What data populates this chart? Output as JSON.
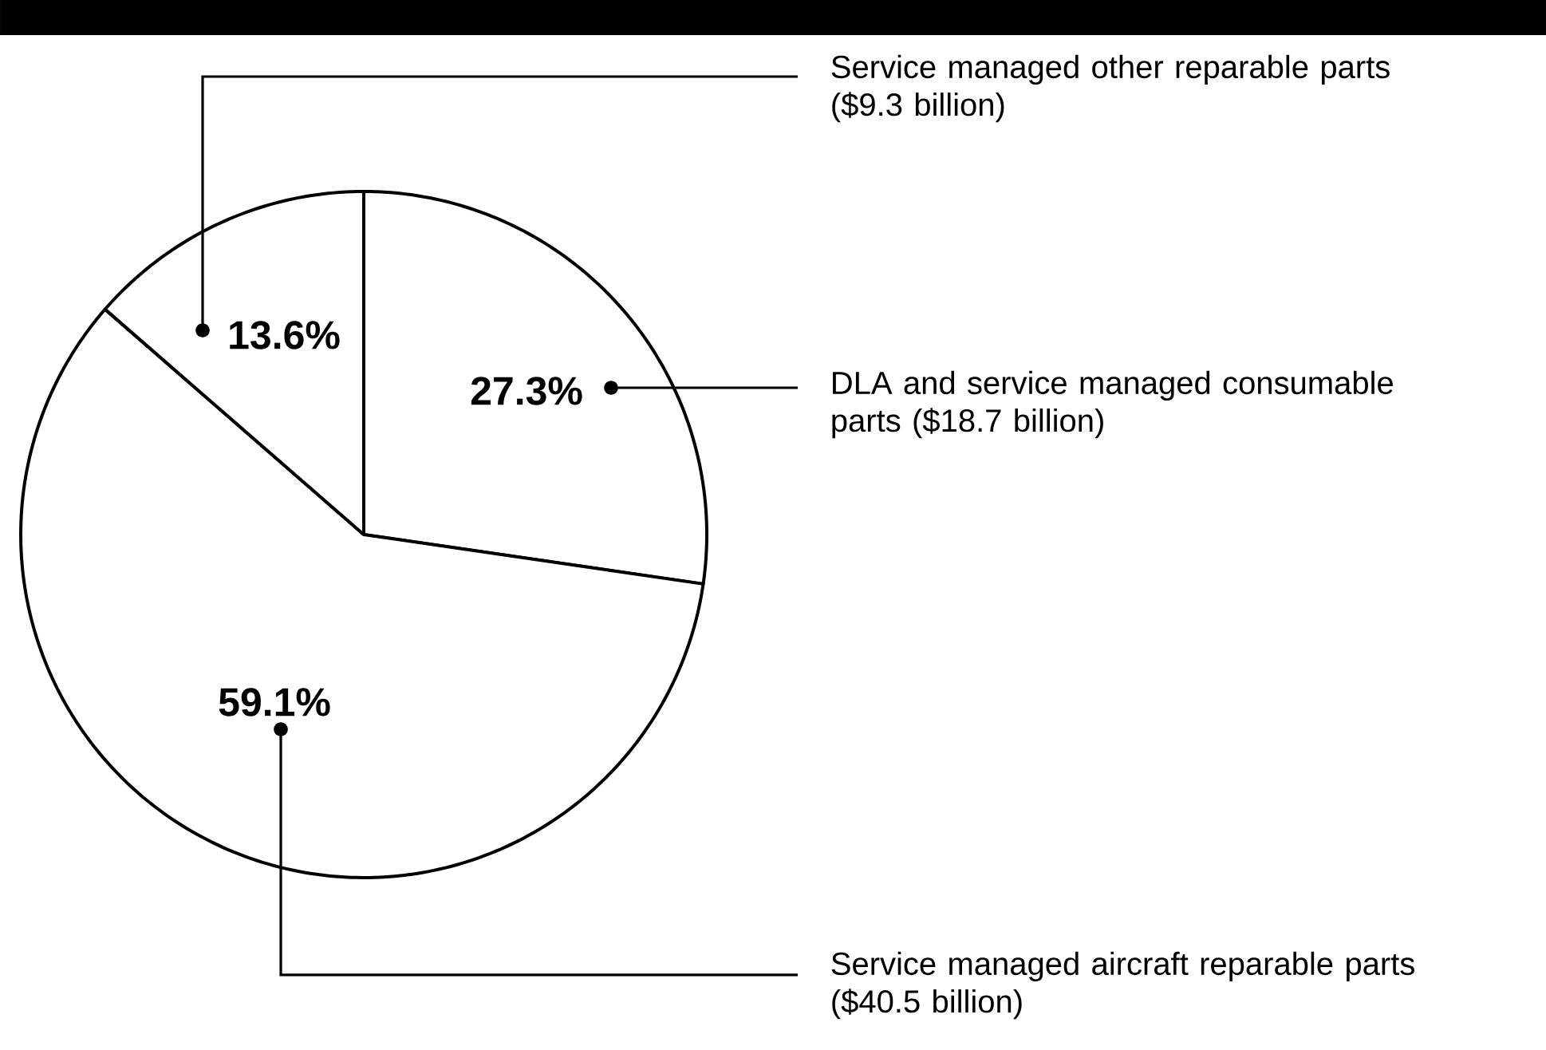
{
  "chart_data": {
    "type": "pie",
    "categories": [
      "DLA and service managed consumable parts ($18.7 billion)",
      "Service managed aircraft reparable parts ($40.5 billion)",
      "Service managed other reparable parts ($9.3 billion)"
    ],
    "values": [
      27.3,
      59.1,
      13.6
    ],
    "value_labels": [
      "27.3%",
      "59.1%",
      "13.6%"
    ],
    "colors": [
      "#ffffff",
      "#ffffff",
      "#ffffff"
    ]
  }
}
